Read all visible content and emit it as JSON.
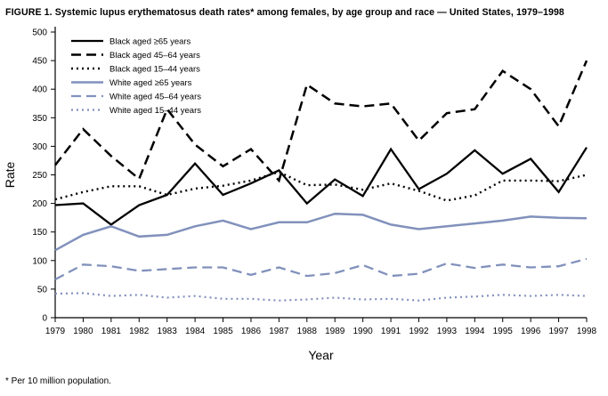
{
  "title": "FIGURE 1. Systemic lupus erythematosus death rates* among females, by age group and race — United States, 1979–1998",
  "footnote": "* Per 10 million population.",
  "colors": {
    "black_series": "#000000",
    "white_series": "#8191bc"
  },
  "chart_data": {
    "type": "line",
    "title": "FIGURE 1. Systemic lupus erythematosus death rates* among females, by age group and race — United States, 1979–1998",
    "xlabel": "Year",
    "ylabel": "Rate",
    "ylim": [
      0,
      500
    ],
    "ytick_step": 50,
    "grid": false,
    "legend_position": "top-left",
    "x": [
      1979,
      1980,
      1981,
      1982,
      1983,
      1984,
      1985,
      1986,
      1987,
      1988,
      1989,
      1990,
      1991,
      1992,
      1993,
      1994,
      1995,
      1996,
      1997,
      1998
    ],
    "series": [
      {
        "name": "Black aged ≥65 years",
        "slug": "black-65plus",
        "color": "#000000",
        "style": "solid",
        "width": 2.3,
        "values": [
          197,
          200,
          163,
          197,
          215,
          270,
          215,
          235,
          258,
          200,
          242,
          213,
          295,
          225,
          252,
          293,
          252,
          278,
          220,
          298
        ]
      },
      {
        "name": "Black aged 45–64 years",
        "slug": "black-45-64",
        "color": "#000000",
        "style": "dashed",
        "width": 2.5,
        "values": [
          267,
          330,
          283,
          243,
          365,
          303,
          265,
          295,
          240,
          408,
          375,
          370,
          375,
          310,
          358,
          365,
          432,
          400,
          335,
          450
        ]
      },
      {
        "name": "Black aged 15–44 years",
        "slug": "black-15-44",
        "color": "#000000",
        "style": "dotted",
        "width": 2.4,
        "values": [
          207,
          220,
          230,
          230,
          215,
          226,
          231,
          240,
          255,
          232,
          233,
          224,
          235,
          222,
          205,
          214,
          240,
          240,
          239,
          250
        ]
      },
      {
        "name": "White aged ≥65 years",
        "slug": "white-65plus",
        "color": "#8191bc",
        "style": "solid",
        "width": 2.5,
        "values": [
          118,
          145,
          160,
          142,
          145,
          160,
          170,
          155,
          167,
          167,
          182,
          180,
          163,
          155,
          160,
          165,
          170,
          177,
          175,
          174
        ]
      },
      {
        "name": "White aged 45–64 years",
        "slug": "white-45-64",
        "color": "#8191bc",
        "style": "dashed",
        "width": 2.3,
        "values": [
          67,
          93,
          90,
          82,
          85,
          88,
          88,
          75,
          88,
          73,
          78,
          92,
          73,
          77,
          95,
          87,
          93,
          88,
          90,
          103
        ]
      },
      {
        "name": "White aged 15–44 years",
        "slug": "white-15-44",
        "color": "#8191bc",
        "style": "dotted",
        "width": 2.2,
        "values": [
          42,
          43,
          38,
          40,
          35,
          38,
          33,
          33,
          30,
          32,
          35,
          32,
          33,
          30,
          35,
          37,
          40,
          38,
          40,
          38
        ]
      }
    ]
  }
}
